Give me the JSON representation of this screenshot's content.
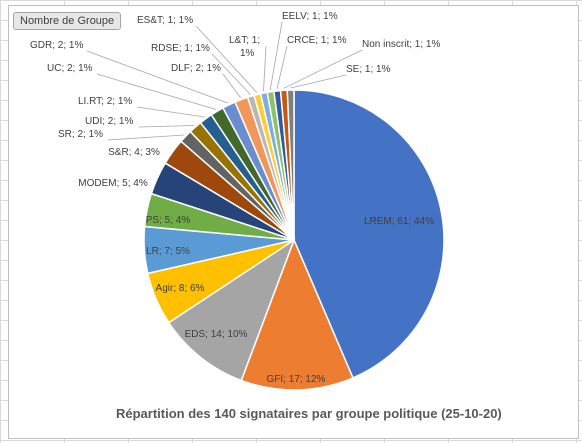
{
  "pivot": {
    "field_button": "Nombre de Groupe"
  },
  "chart_data": {
    "type": "pie",
    "title": "Répartition des 140 signataires par groupe politique (25-10-20)",
    "slices": [
      {
        "label": "LREM",
        "value": 61,
        "percent": "44%",
        "color": "#4472c4"
      },
      {
        "label": "GFI",
        "value": 17,
        "percent": "12%",
        "color": "#ed7d31"
      },
      {
        "label": "EDS",
        "value": 14,
        "percent": "10%",
        "color": "#a5a5a5"
      },
      {
        "label": "Agir",
        "value": 8,
        "percent": "6%",
        "color": "#ffc000"
      },
      {
        "label": "LR",
        "value": 7,
        "percent": "5%",
        "color": "#5b9bd5"
      },
      {
        "label": "PS",
        "value": 5,
        "percent": "4%",
        "color": "#70ad47"
      },
      {
        "label": "MODEM",
        "value": 5,
        "percent": "4%",
        "color": "#264478"
      },
      {
        "label": "S&R",
        "value": 4,
        "percent": "3%",
        "color": "#9e480e"
      },
      {
        "label": "SR",
        "value": 2,
        "percent": "1%",
        "color": "#636363"
      },
      {
        "label": "UDI",
        "value": 2,
        "percent": "1%",
        "color": "#997300"
      },
      {
        "label": "LI.RT",
        "value": 2,
        "percent": "1%",
        "color": "#255e91"
      },
      {
        "label": "UC",
        "value": 2,
        "percent": "1%",
        "color": "#43682b"
      },
      {
        "label": "GDR",
        "value": 2,
        "percent": "1%",
        "color": "#698ed0"
      },
      {
        "label": "DLF",
        "value": 2,
        "percent": "1%",
        "color": "#f1975a"
      },
      {
        "label": "RDSE",
        "value": 1,
        "percent": "1%",
        "color": "#b7b7b7"
      },
      {
        "label": "ES&T",
        "value": 1,
        "percent": "1%",
        "color": "#ffcd33"
      },
      {
        "label": "L&T",
        "value": 1,
        "percent": "1%",
        "color": "#7cafdd"
      },
      {
        "label": "EELV",
        "value": 1,
        "percent": "1%",
        "color": "#8cc168"
      },
      {
        "label": "CRCE",
        "value": 1,
        "percent": "1%",
        "color": "#335aa1"
      },
      {
        "label": "Non inscrit",
        "value": 1,
        "percent": "1%",
        "color": "#c65911"
      },
      {
        "label": "SE",
        "value": 1,
        "percent": "1%",
        "color": "#7f7f7f"
      }
    ]
  }
}
